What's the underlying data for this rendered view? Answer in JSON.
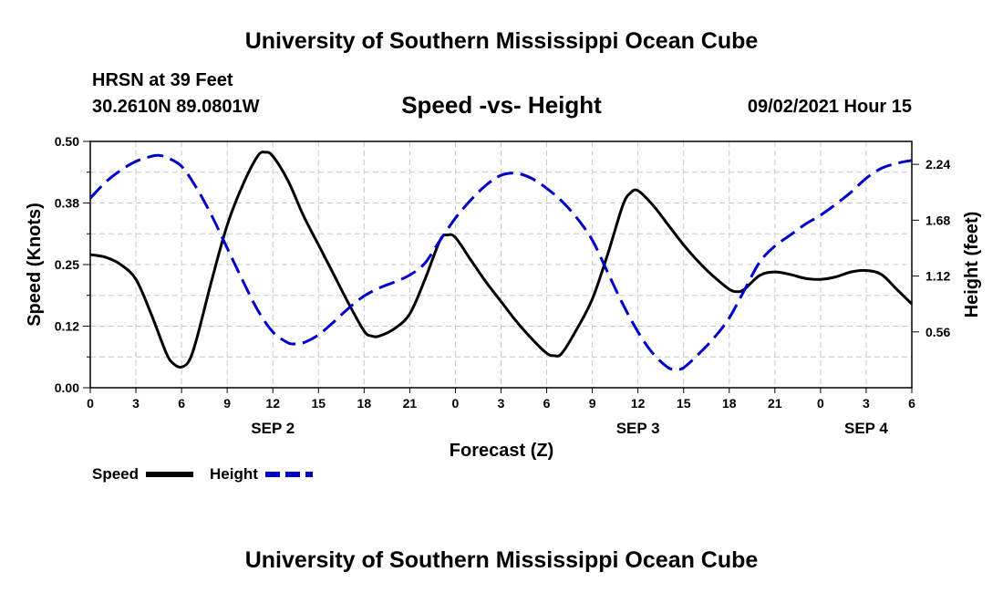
{
  "page": {
    "title_top": "University of Southern Mississippi Ocean Cube",
    "title_bottom": "University of Southern Mississippi Ocean Cube",
    "station": "HRSN at 39 Feet",
    "coords": "30.2610N  89.0801W",
    "chart_title": "Speed -vs- Height",
    "datetime": "09/02/2021 Hour 15"
  },
  "chart_data": {
    "type": "line",
    "title": "Speed -vs- Height",
    "xlabel": "Forecast (Z)",
    "ylabel_left": "Speed (Knots)",
    "ylabel_right": "Height (feet)",
    "x_unit": "hours since SEP 2 00Z",
    "xlim": [
      0,
      54
    ],
    "ylim_left": [
      0,
      0.5
    ],
    "ylim_right": [
      0,
      2.47
    ],
    "grid": true,
    "x_ticks": [
      {
        "x": 0,
        "label": "0"
      },
      {
        "x": 3,
        "label": "3"
      },
      {
        "x": 6,
        "label": "6"
      },
      {
        "x": 9,
        "label": "9"
      },
      {
        "x": 12,
        "label": "12"
      },
      {
        "x": 15,
        "label": "15"
      },
      {
        "x": 18,
        "label": "18"
      },
      {
        "x": 21,
        "label": "21"
      },
      {
        "x": 24,
        "label": "0"
      },
      {
        "x": 27,
        "label": "3"
      },
      {
        "x": 30,
        "label": "6"
      },
      {
        "x": 33,
        "label": "9"
      },
      {
        "x": 36,
        "label": "12"
      },
      {
        "x": 39,
        "label": "15"
      },
      {
        "x": 42,
        "label": "18"
      },
      {
        "x": 45,
        "label": "21"
      },
      {
        "x": 48,
        "label": "0"
      },
      {
        "x": 51,
        "label": "3"
      },
      {
        "x": 54,
        "label": "6"
      }
    ],
    "date_labels": [
      {
        "x": 12,
        "label": "SEP 2"
      },
      {
        "x": 36,
        "label": "SEP 3"
      },
      {
        "x": 51,
        "label": "SEP 4"
      }
    ],
    "y_ticks_left": [
      {
        "v": 0,
        "label": "0.00"
      },
      {
        "v": 0.125,
        "label": "0.12"
      },
      {
        "v": 0.25,
        "label": "0.25"
      },
      {
        "v": 0.375,
        "label": "0.38"
      },
      {
        "v": 0.5,
        "label": "0.50"
      }
    ],
    "y_ticks_right": [
      {
        "v": 0.56,
        "label": "0.56"
      },
      {
        "v": 1.12,
        "label": "1.12"
      },
      {
        "v": 1.68,
        "label": "1.68"
      },
      {
        "v": 2.24,
        "label": "2.24"
      }
    ],
    "series": [
      {
        "name": "Speed",
        "axis": "left",
        "color": "#000000",
        "dash": "solid",
        "points": [
          [
            0,
            0.27
          ],
          [
            1,
            0.265
          ],
          [
            2,
            0.25
          ],
          [
            3,
            0.22
          ],
          [
            4,
            0.15
          ],
          [
            5,
            0.07
          ],
          [
            5.5,
            0.048
          ],
          [
            6,
            0.042
          ],
          [
            6.5,
            0.055
          ],
          [
            7,
            0.1
          ],
          [
            8,
            0.22
          ],
          [
            9,
            0.33
          ],
          [
            10,
            0.41
          ],
          [
            11,
            0.47
          ],
          [
            11.5,
            0.478
          ],
          [
            12,
            0.47
          ],
          [
            13,
            0.42
          ],
          [
            14,
            0.35
          ],
          [
            15,
            0.29
          ],
          [
            16,
            0.23
          ],
          [
            17,
            0.17
          ],
          [
            18,
            0.115
          ],
          [
            18.5,
            0.105
          ],
          [
            19,
            0.105
          ],
          [
            20,
            0.12
          ],
          [
            21,
            0.15
          ],
          [
            22,
            0.22
          ],
          [
            23,
            0.3
          ],
          [
            23.5,
            0.31
          ],
          [
            24,
            0.305
          ],
          [
            25,
            0.26
          ],
          [
            26,
            0.215
          ],
          [
            27,
            0.175
          ],
          [
            28,
            0.135
          ],
          [
            29,
            0.1
          ],
          [
            30,
            0.07
          ],
          [
            30.5,
            0.065
          ],
          [
            31,
            0.07
          ],
          [
            32,
            0.12
          ],
          [
            33,
            0.18
          ],
          [
            34,
            0.27
          ],
          [
            35,
            0.37
          ],
          [
            35.5,
            0.395
          ],
          [
            36,
            0.4
          ],
          [
            37,
            0.37
          ],
          [
            38,
            0.33
          ],
          [
            39,
            0.29
          ],
          [
            40,
            0.255
          ],
          [
            41,
            0.225
          ],
          [
            42,
            0.2
          ],
          [
            42.5,
            0.195
          ],
          [
            43,
            0.2
          ],
          [
            44,
            0.228
          ],
          [
            45,
            0.235
          ],
          [
            46,
            0.23
          ],
          [
            47,
            0.222
          ],
          [
            48,
            0.22
          ],
          [
            49,
            0.225
          ],
          [
            50,
            0.235
          ],
          [
            51,
            0.238
          ],
          [
            52,
            0.23
          ],
          [
            53,
            0.2
          ],
          [
            54,
            0.17
          ]
        ]
      },
      {
        "name": "Height",
        "axis": "right",
        "color": "#0000cc",
        "dash": "dashed",
        "points": [
          [
            0,
            1.9
          ],
          [
            1,
            2.06
          ],
          [
            2,
            2.18
          ],
          [
            3,
            2.27
          ],
          [
            4,
            2.32
          ],
          [
            4.5,
            2.33
          ],
          [
            5,
            2.31
          ],
          [
            6,
            2.22
          ],
          [
            7,
            2.0
          ],
          [
            8,
            1.72
          ],
          [
            9,
            1.4
          ],
          [
            10,
            1.08
          ],
          [
            11,
            0.78
          ],
          [
            12,
            0.56
          ],
          [
            13,
            0.45
          ],
          [
            13.5,
            0.44
          ],
          [
            14,
            0.45
          ],
          [
            15,
            0.53
          ],
          [
            16,
            0.66
          ],
          [
            17,
            0.8
          ],
          [
            18,
            0.92
          ],
          [
            19,
            1.0
          ],
          [
            20,
            1.06
          ],
          [
            21,
            1.13
          ],
          [
            22,
            1.25
          ],
          [
            23,
            1.48
          ],
          [
            24,
            1.7
          ],
          [
            25,
            1.88
          ],
          [
            26,
            2.03
          ],
          [
            27,
            2.13
          ],
          [
            28,
            2.15
          ],
          [
            29,
            2.1
          ],
          [
            30,
            2.0
          ],
          [
            31,
            1.87
          ],
          [
            32,
            1.7
          ],
          [
            33,
            1.48
          ],
          [
            34,
            1.16
          ],
          [
            35,
            0.84
          ],
          [
            36,
            0.56
          ],
          [
            37,
            0.34
          ],
          [
            38,
            0.2
          ],
          [
            38.5,
            0.19
          ],
          [
            39,
            0.2
          ],
          [
            40,
            0.34
          ],
          [
            41,
            0.5
          ],
          [
            42,
            0.7
          ],
          [
            43,
            0.98
          ],
          [
            44,
            1.26
          ],
          [
            45,
            1.42
          ],
          [
            46,
            1.53
          ],
          [
            47,
            1.64
          ],
          [
            48,
            1.73
          ],
          [
            49,
            1.84
          ],
          [
            50,
            1.96
          ],
          [
            51,
            2.1
          ],
          [
            52,
            2.2
          ],
          [
            53,
            2.25
          ],
          [
            54,
            2.28
          ]
        ]
      }
    ],
    "legend": [
      {
        "name": "Speed",
        "color": "#000000",
        "dash": "solid"
      },
      {
        "name": "Height",
        "color": "#0000cc",
        "dash": "dashed"
      }
    ]
  }
}
